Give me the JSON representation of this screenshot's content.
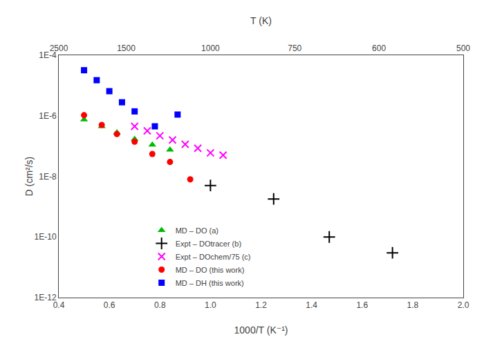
{
  "chart_data": {
    "type": "scatter",
    "log": "y",
    "xlabel": "1000/T (K⁻¹)",
    "ylabel": "D (cm²/s)",
    "x2label": "T (K)",
    "xlim": [
      0.4,
      2.0
    ],
    "xticks": [
      0.4,
      0.6,
      0.8,
      {
        "value": 1.0,
        "label": "1.0"
      },
      1.2,
      1.4,
      1.6,
      1.8,
      {
        "value": 2.0,
        "label": "2.0"
      }
    ],
    "x2lim": [
      0.4,
      2.0
    ],
    "x2ticks": [
      {
        "value": 0.4,
        "label": "2500"
      },
      {
        "value": 0.6666666666666666,
        "label": "1500"
      },
      {
        "value": 1.0,
        "label": "1000"
      },
      {
        "value": 1.3333333333333333,
        "label": "750"
      },
      {
        "value": 1.6666666666666667,
        "label": "600"
      },
      {
        "value": 2.0,
        "label": "500"
      }
    ],
    "ylim": [
      1e-12,
      0.0001
    ],
    "yticks": [
      {
        "value": 1e-12,
        "label": "1E-12"
      },
      {
        "value": 1e-10,
        "label": "1E-10"
      },
      {
        "value": 1e-08,
        "label": "1E-8"
      },
      {
        "value": 1e-06,
        "label": "1E-6"
      },
      {
        "value": 0.0001,
        "label": "1E-4"
      }
    ],
    "grid": false,
    "legend": "lower left",
    "series": [
      {
        "name": "MD – DO (a)",
        "color": "#00bb00",
        "marker": "triangle",
        "x": [
          0.5,
          0.57,
          0.63,
          0.7,
          0.77,
          0.84
        ],
        "values": [
          7.5e-07,
          4.5e-07,
          2.8e-07,
          1.7e-07,
          1.1e-07,
          7.5e-08
        ]
      },
      {
        "name": "Expt – DOtracer (b)",
        "color": "black",
        "marker": "plus",
        "x": [
          1.0,
          1.25,
          1.47,
          1.72
        ],
        "values": [
          5e-09,
          1.8e-09,
          1e-10,
          3e-11
        ]
      },
      {
        "name": "Expt – DOchem/75 (c)",
        "color": "magenta",
        "marker": "x",
        "x": [
          0.7,
          0.75,
          0.8,
          0.85,
          0.9,
          0.95,
          1.0,
          1.05
        ],
        "values": [
          4.5e-07,
          3.2e-07,
          2.2e-07,
          1.6e-07,
          1.15e-07,
          8.5e-08,
          6e-08,
          5e-08
        ]
      },
      {
        "name": "MD – DO (this work)",
        "color": "red",
        "marker": "circle",
        "x": [
          0.5,
          0.57,
          0.63,
          0.7,
          0.77,
          0.84,
          0.92
        ],
        "values": [
          1.05e-06,
          5e-07,
          2.5e-07,
          1.4e-07,
          5.5e-08,
          3e-08,
          8e-09
        ]
      },
      {
        "name": "MD – DH (this work)",
        "color": "blue",
        "marker": "square",
        "x": [
          0.5,
          0.55,
          0.6,
          0.65,
          0.7,
          0.78,
          0.87
        ],
        "values": [
          3.2e-05,
          1.5e-05,
          6.5e-06,
          2.8e-06,
          1.4e-06,
          4.5e-07,
          1.1e-06
        ]
      }
    ]
  }
}
